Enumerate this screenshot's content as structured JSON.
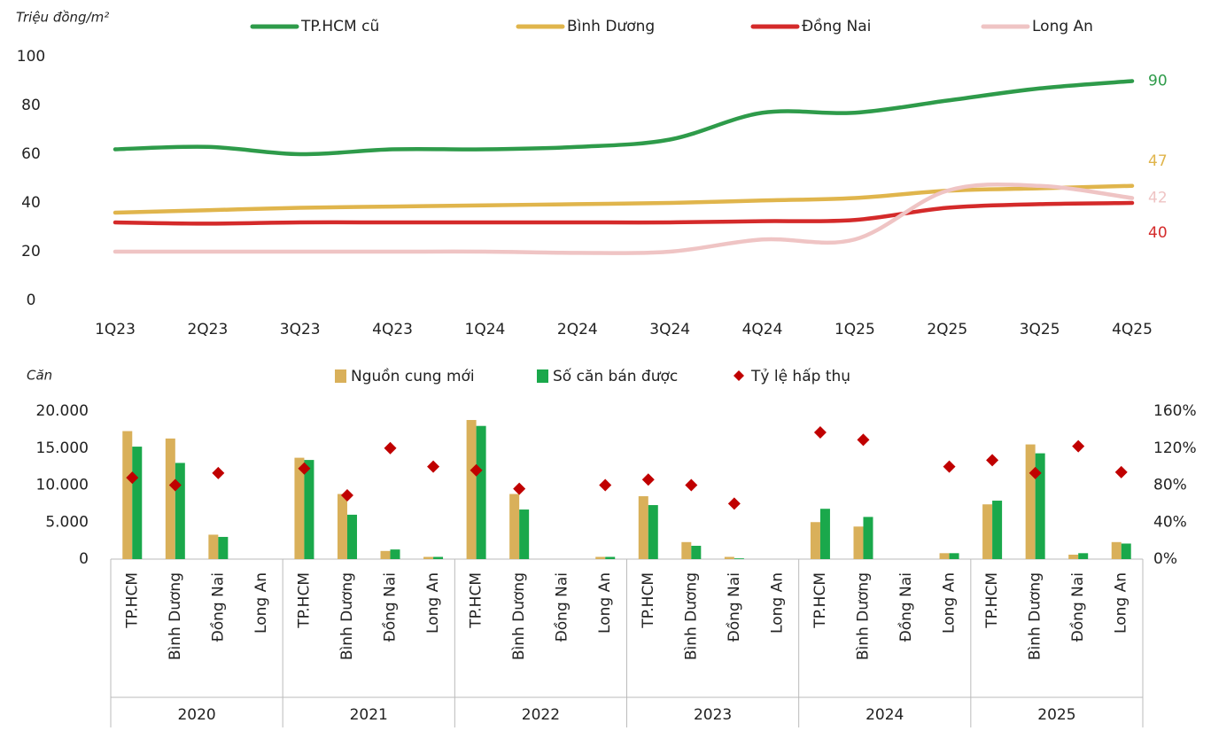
{
  "chart_data": [
    {
      "type": "line",
      "y_label": "Triệu đồng/m²",
      "categories": [
        "1Q23",
        "2Q23",
        "3Q23",
        "4Q23",
        "1Q24",
        "2Q24",
        "3Q24",
        "4Q24",
        "1Q25",
        "2Q25",
        "3Q25",
        "4Q25"
      ],
      "series": [
        {
          "name": "TP.HCM cũ",
          "color": "#2e9b4a",
          "values": [
            62,
            63,
            60,
            62,
            62,
            63,
            66,
            77,
            77,
            82,
            87,
            90
          ]
        },
        {
          "name": "Bình Dương",
          "color": "#e0b54c",
          "values": [
            36,
            37,
            38,
            38.5,
            39,
            39.5,
            40,
            41,
            42,
            45,
            46,
            47
          ]
        },
        {
          "name": "Đồng Nai",
          "color": "#d42a2a",
          "values": [
            32,
            31.5,
            32,
            32,
            32,
            32,
            32,
            32.5,
            33,
            38,
            39.5,
            40
          ]
        },
        {
          "name": "Long An",
          "color": "#efc4c4",
          "values": [
            20,
            20,
            20,
            20,
            20,
            19.5,
            20,
            25,
            25,
            45,
            47,
            42
          ]
        }
      ],
      "ylim": [
        0,
        100
      ],
      "yticks": [
        0,
        20,
        40,
        60,
        80,
        100
      ],
      "end_labels": true
    },
    {
      "type": "bar",
      "y_label": "Căn",
      "groups": [
        "2020",
        "2021",
        "2022",
        "2023",
        "2024",
        "2025"
      ],
      "categories": [
        "TP.HCM",
        "Bình Dương",
        "Đồng Nai",
        "Long An",
        "TP.HCM",
        "Bình Dương",
        "Đồng Nai",
        "Long An",
        "TP.HCM",
        "Bình Dương",
        "Đồng Nai",
        "Long An",
        "TP.HCM",
        "Bình Dương",
        "Đồng Nai",
        "Long An",
        "TP.HCM",
        "Bình Dương",
        "Đồng Nai",
        "Long An",
        "TP.HCM",
        "Bình Dương",
        "Đồng Nai",
        "Long An"
      ],
      "series": [
        {
          "name": "Nguồn cung mới",
          "color": "#d9b05a",
          "values": [
            17300,
            16300,
            3300,
            0,
            13700,
            8800,
            1100,
            300,
            18800,
            8800,
            0,
            300,
            8500,
            2300,
            300,
            0,
            5000,
            4400,
            0,
            800,
            7400,
            15500,
            600,
            2300
          ]
        },
        {
          "name": "Số căn bán được",
          "color": "#1aa84b",
          "values": [
            15200,
            13000,
            3000,
            0,
            13400,
            6000,
            1300,
            300,
            18000,
            6700,
            0,
            300,
            7300,
            1800,
            100,
            0,
            6800,
            5700,
            0,
            800,
            7900,
            14300,
            800,
            2100
          ]
        },
        {
          "name": "Tỷ lệ hấp thụ",
          "color": "#c00000",
          "type": "scatter",
          "axis": "y2",
          "values": [
            88,
            80,
            93,
            null,
            98,
            69,
            120,
            100,
            96,
            76,
            null,
            80,
            86,
            80,
            60,
            null,
            137,
            129,
            null,
            100,
            107,
            93,
            122,
            94
          ]
        }
      ],
      "ylim": [
        0,
        20000
      ],
      "yticks": [
        0,
        {
          "value": 5000,
          "label": "5.000"
        },
        {
          "value": 10000,
          "label": "10.000"
        },
        {
          "value": 15000,
          "label": "15.000"
        },
        {
          "value": 20000,
          "label": "20.000"
        }
      ],
      "y2lim": [
        0,
        160
      ],
      "y2ticks": [
        {
          "value": 0,
          "label": "0%"
        },
        {
          "value": 40,
          "label": "40%"
        },
        {
          "value": 80,
          "label": "80%"
        },
        {
          "value": 120,
          "label": "120%"
        },
        {
          "value": 160,
          "label": "160%"
        }
      ]
    }
  ]
}
